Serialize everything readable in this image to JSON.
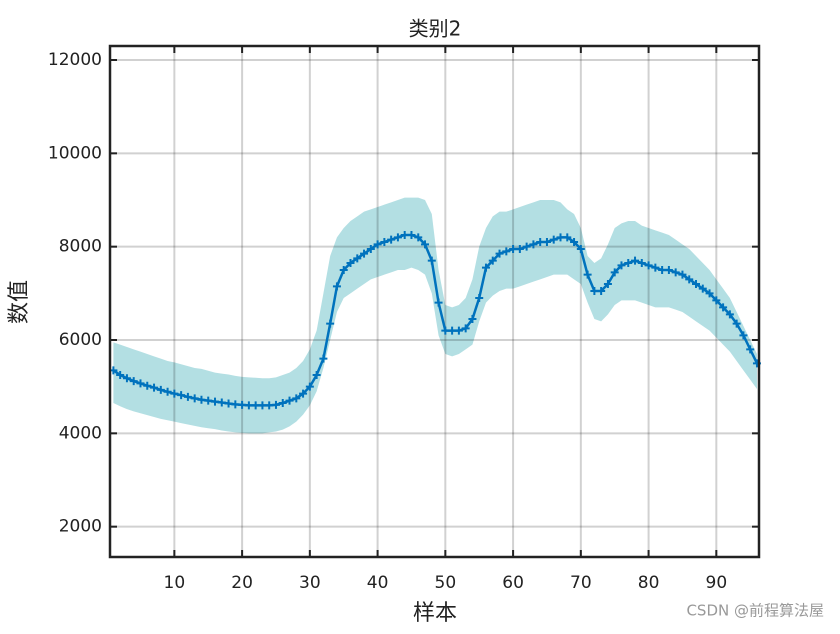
{
  "chart_data": {
    "type": "line",
    "title": "类别2",
    "xlabel": "样本",
    "ylabel": "数值",
    "watermark": "CSDN @前程算法屋",
    "x": [
      1,
      2,
      3,
      4,
      5,
      6,
      7,
      8,
      9,
      10,
      11,
      12,
      13,
      14,
      15,
      16,
      17,
      18,
      19,
      20,
      21,
      22,
      23,
      24,
      25,
      26,
      27,
      28,
      29,
      30,
      31,
      32,
      33,
      34,
      35,
      36,
      37,
      38,
      39,
      40,
      41,
      42,
      43,
      44,
      45,
      46,
      47,
      48,
      49,
      50,
      51,
      52,
      53,
      54,
      55,
      56,
      57,
      58,
      59,
      60,
      61,
      62,
      63,
      64,
      65,
      66,
      67,
      68,
      69,
      70,
      71,
      72,
      73,
      74,
      75,
      76,
      77,
      78,
      79,
      80,
      81,
      82,
      83,
      84,
      85,
      86,
      87,
      88,
      89,
      90,
      91,
      92,
      93,
      94,
      95,
      96
    ],
    "series": [
      {
        "color": "#0072bd",
        "band_color": "#b3dfe3",
        "values": [
          5350,
          5250,
          5180,
          5120,
          5070,
          5020,
          4980,
          4930,
          4890,
          4850,
          4820,
          4780,
          4750,
          4720,
          4700,
          4680,
          4660,
          4640,
          4620,
          4610,
          4600,
          4600,
          4600,
          4600,
          4610,
          4650,
          4700,
          4750,
          4850,
          5000,
          5250,
          5600,
          6350,
          7150,
          7500,
          7650,
          7750,
          7850,
          7950,
          8050,
          8100,
          8150,
          8200,
          8250,
          8250,
          8200,
          8050,
          7700,
          6800,
          6200,
          6200,
          6200,
          6250,
          6450,
          6900,
          7550,
          7700,
          7850,
          7900,
          7950,
          7950,
          8000,
          8050,
          8100,
          8100,
          8150,
          8200,
          8200,
          8100,
          7950,
          7400,
          7050,
          7050,
          7200,
          7450,
          7600,
          7650,
          7700,
          7650,
          7600,
          7550,
          7500,
          7500,
          7450,
          7400,
          7300,
          7200,
          7100,
          7000,
          6850,
          6700,
          6550,
          6350,
          6100,
          5800,
          5500
        ],
        "upper": [
          5950,
          5900,
          5850,
          5800,
          5750,
          5700,
          5650,
          5600,
          5550,
          5520,
          5480,
          5440,
          5400,
          5380,
          5340,
          5300,
          5280,
          5260,
          5230,
          5210,
          5200,
          5190,
          5180,
          5180,
          5200,
          5250,
          5300,
          5400,
          5550,
          5800,
          6200,
          7000,
          7800,
          8200,
          8400,
          8550,
          8650,
          8750,
          8800,
          8850,
          8900,
          8950,
          9000,
          9050,
          9050,
          9050,
          9000,
          8700,
          7500,
          6750,
          6700,
          6750,
          6900,
          7300,
          8000,
          8400,
          8650,
          8750,
          8750,
          8800,
          8850,
          8900,
          8950,
          9000,
          9000,
          9000,
          8950,
          8800,
          8700,
          8400,
          7800,
          7650,
          7750,
          8050,
          8400,
          8500,
          8550,
          8550,
          8450,
          8400,
          8350,
          8300,
          8250,
          8150,
          8050,
          7950,
          7800,
          7650,
          7500,
          7300,
          7100,
          6900,
          6600,
          6300,
          6000,
          5700
        ],
        "lower": [
          4650,
          4580,
          4520,
          4470,
          4430,
          4390,
          4350,
          4310,
          4280,
          4250,
          4220,
          4190,
          4160,
          4130,
          4110,
          4090,
          4060,
          4040,
          4020,
          4010,
          4000,
          4000,
          4000,
          4020,
          4040,
          4080,
          4150,
          4250,
          4400,
          4600,
          4900,
          5400,
          6000,
          6600,
          6900,
          7000,
          7100,
          7200,
          7300,
          7350,
          7400,
          7450,
          7500,
          7500,
          7550,
          7500,
          7400,
          7000,
          6100,
          5700,
          5650,
          5700,
          5800,
          5900,
          6400,
          6800,
          6950,
          7050,
          7100,
          7100,
          7150,
          7200,
          7250,
          7300,
          7350,
          7400,
          7400,
          7400,
          7300,
          7200,
          6800,
          6450,
          6400,
          6550,
          6750,
          6850,
          6850,
          6850,
          6800,
          6750,
          6700,
          6700,
          6700,
          6650,
          6600,
          6500,
          6400,
          6300,
          6200,
          6050,
          5900,
          5750,
          5550,
          5350,
          5150,
          4950
        ]
      }
    ],
    "xlim": [
      0.5,
      96.3
    ],
    "ylim": [
      1350,
      12300
    ],
    "xticks": [
      10,
      20,
      30,
      40,
      50,
      60,
      70,
      80,
      90
    ],
    "yticks": [
      2000,
      4000,
      6000,
      8000,
      10000,
      12000
    ],
    "grid": true
  }
}
